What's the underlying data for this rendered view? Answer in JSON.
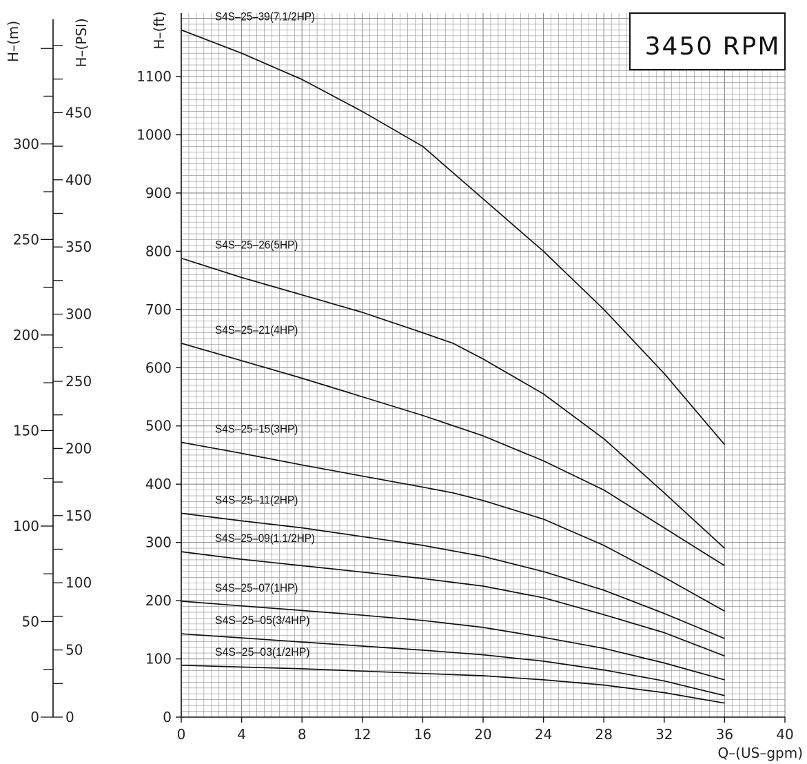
{
  "chart_data": {
    "type": "line",
    "title": "3450 RPM",
    "xlabel": "Q–(US–gpm)",
    "ylabel": "H–(ft)",
    "xlim": [
      0,
      40
    ],
    "ylim": [
      0,
      1180
    ],
    "x_ticks": [
      0,
      4,
      8,
      12,
      16,
      20,
      24,
      28,
      32,
      36,
      40
    ],
    "y_ticks": [
      0,
      100,
      200,
      300,
      400,
      500,
      600,
      700,
      800,
      900,
      1000,
      1100
    ],
    "grid": true,
    "secondary_axes": [
      {
        "label": "H–(m)",
        "ticks": [
          0,
          50,
          100,
          150,
          200,
          250,
          300
        ]
      },
      {
        "label": "H–(PSI)",
        "ticks": [
          0,
          50,
          100,
          150,
          200,
          250,
          300,
          350,
          400,
          450
        ]
      }
    ],
    "series": [
      {
        "name": "S4S–25–39(7.1/2HP)",
        "x": [
          0,
          4,
          8,
          12,
          16,
          20,
          24,
          28,
          32,
          36
        ],
        "values": [
          1180,
          1140,
          1095,
          1040,
          980,
          890,
          800,
          700,
          590,
          468
        ]
      },
      {
        "name": "S4S–25–26(5HP)",
        "x": [
          0,
          4,
          8,
          12,
          16,
          18,
          20,
          24,
          28,
          32,
          36
        ],
        "values": [
          788,
          755,
          725,
          695,
          660,
          642,
          615,
          555,
          478,
          385,
          290
        ]
      },
      {
        "name": "S4S–25–21(4HP)",
        "x": [
          0,
          4,
          8,
          12,
          16,
          20,
          24,
          28,
          32,
          36
        ],
        "values": [
          642,
          612,
          582,
          550,
          518,
          483,
          440,
          390,
          325,
          260
        ]
      },
      {
        "name": "S4S–25–15(3HP)",
        "x": [
          0,
          4,
          8,
          12,
          16,
          18,
          20,
          24,
          28,
          32,
          36
        ],
        "values": [
          472,
          453,
          433,
          414,
          395,
          385,
          372,
          340,
          295,
          240,
          182
        ]
      },
      {
        "name": "S4S–25–11(2HP)",
        "x": [
          0,
          4,
          8,
          12,
          16,
          20,
          24,
          28,
          32,
          36
        ],
        "values": [
          350,
          337,
          325,
          310,
          295,
          276,
          250,
          218,
          178,
          135
        ]
      },
      {
        "name": "S4S–25–09(1.1/2HP)",
        "x": [
          0,
          4,
          8,
          12,
          16,
          20,
          24,
          28,
          32,
          36
        ],
        "values": [
          284,
          271,
          260,
          249,
          238,
          225,
          205,
          176,
          145,
          105
        ]
      },
      {
        "name": "S4S–25–07(1HP)",
        "x": [
          0,
          4,
          8,
          12,
          16,
          20,
          24,
          28,
          32,
          36
        ],
        "values": [
          199,
          191,
          183,
          175,
          166,
          154,
          137,
          118,
          93,
          64
        ]
      },
      {
        "name": "S4S–25–05(3/4HP)",
        "x": [
          0,
          4,
          8,
          12,
          16,
          20,
          24,
          28,
          32,
          36
        ],
        "values": [
          143,
          136,
          129,
          122,
          115,
          107,
          96,
          81,
          62,
          37
        ]
      },
      {
        "name": "S4S–25–03(1/2HP)",
        "x": [
          0,
          4,
          8,
          12,
          16,
          20,
          24,
          28,
          32,
          36
        ],
        "values": [
          89,
          86,
          83,
          79,
          75,
          71,
          64,
          55,
          42,
          24
        ]
      }
    ]
  }
}
